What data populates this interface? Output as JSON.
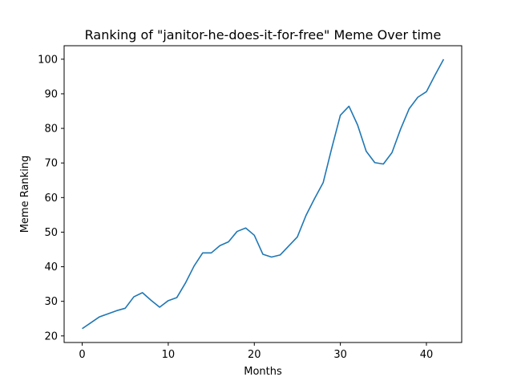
{
  "chart_data": {
    "type": "line",
    "title": "Ranking of \"janitor-he-does-it-for-free\" Meme Over time",
    "xlabel": "Months",
    "ylabel": "Meme Ranking",
    "xlim": [
      -2.1,
      44.1
    ],
    "ylim": [
      18.1,
      103.9
    ],
    "xticks": [
      0,
      10,
      20,
      30,
      40
    ],
    "yticks": [
      20,
      30,
      40,
      50,
      60,
      70,
      80,
      90,
      100
    ],
    "grid": false,
    "line_color": "#1f77b4",
    "series": [
      {
        "x": [
          0,
          1,
          2,
          3,
          4,
          5,
          6,
          7,
          8,
          9,
          10,
          11,
          12,
          13,
          14,
          15,
          16,
          17,
          18,
          19,
          20,
          21,
          22,
          23,
          24,
          25,
          26,
          27,
          28,
          29,
          30,
          31,
          32,
          33,
          34,
          35,
          36,
          37,
          38,
          39,
          40,
          41,
          42
        ],
        "values": [
          22.1,
          23.8,
          25.5,
          26.4,
          27.3,
          28.0,
          31.3,
          32.5,
          30.3,
          28.3,
          30.2,
          31.1,
          35.3,
          40.2,
          44.0,
          44.0,
          46.1,
          47.2,
          50.2,
          51.2,
          49.1,
          43.6,
          42.8,
          43.4,
          46.0,
          48.6,
          54.8,
          59.7,
          64.3,
          74.3,
          83.8,
          86.4,
          81.0,
          73.4,
          70.1,
          69.7,
          73.0,
          79.8,
          85.7,
          89.0,
          90.6,
          95.4,
          100.0
        ]
      }
    ]
  }
}
